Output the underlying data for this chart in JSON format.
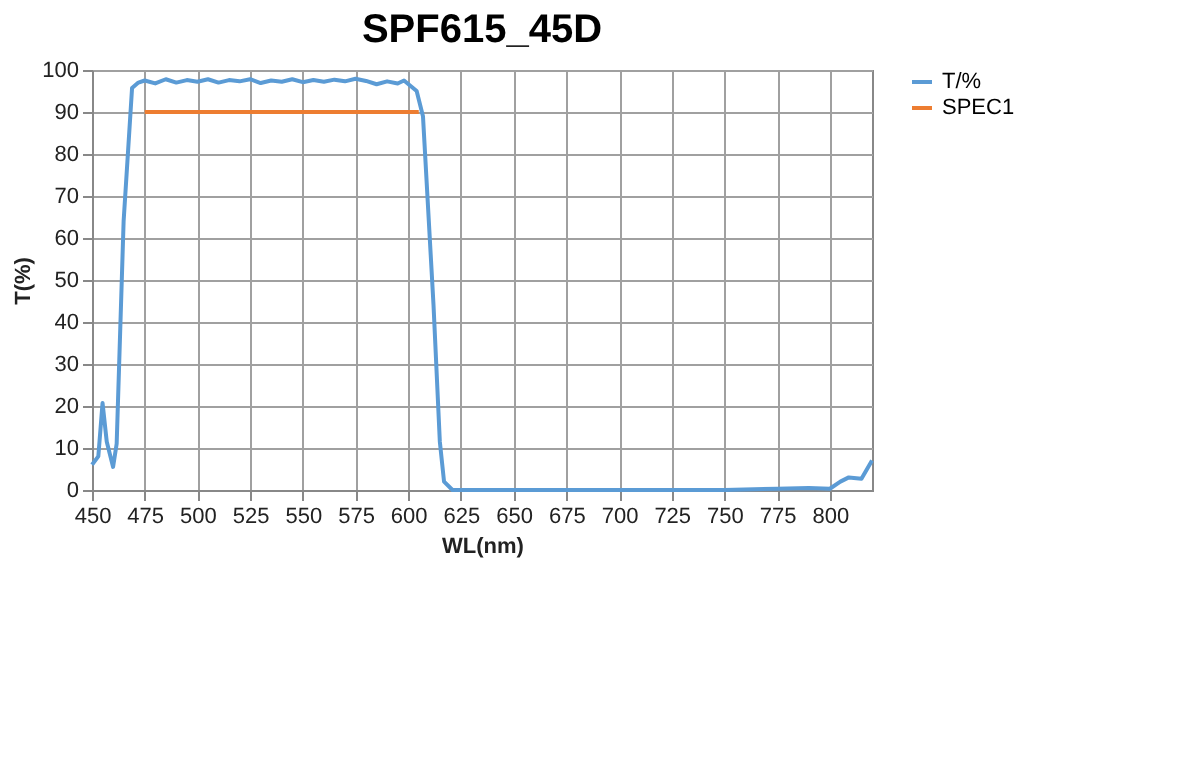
{
  "chart_data": {
    "type": "line",
    "title": "SPF615_45D",
    "xlabel": "WL(nm)",
    "ylabel": "T(%)",
    "xlim": [
      450,
      820
    ],
    "xticks": [
      450,
      475,
      500,
      525,
      550,
      575,
      600,
      625,
      650,
      675,
      700,
      725,
      750,
      775,
      800
    ],
    "ylim": [
      0,
      100
    ],
    "yticks": [
      0,
      10,
      20,
      30,
      40,
      50,
      60,
      70,
      80,
      90,
      100
    ],
    "grid": true,
    "legend": "right",
    "marker": "none",
    "line_style": "solid",
    "series": [
      {
        "name": "T/%",
        "color": "#5b9bd5",
        "x": [
          450,
          453,
          455,
          457,
          460,
          461.7,
          465,
          469,
          472,
          475,
          480,
          485,
          490,
          495,
          500,
          505,
          510,
          515,
          520,
          525,
          530,
          535,
          540,
          545,
          550,
          555,
          560,
          565,
          570,
          575,
          580,
          585,
          590,
          595,
          598,
          604,
          607,
          612,
          615,
          617,
          621,
          650,
          700,
          750,
          775,
          790,
          800,
          805,
          809,
          815,
          820
        ],
        "values": [
          6,
          8,
          20.7,
          11.5,
          5.5,
          11,
          64,
          95.7,
          97,
          97.5,
          96.8,
          97.8,
          97,
          97.6,
          97.2,
          97.8,
          97,
          97.6,
          97.3,
          97.8,
          96.9,
          97.5,
          97.2,
          97.8,
          97.1,
          97.6,
          97.2,
          97.7,
          97.3,
          97.9,
          97.4,
          96.6,
          97.3,
          96.8,
          97.5,
          95,
          89,
          44,
          11.5,
          2,
          0,
          0,
          0,
          0,
          0.3,
          0.5,
          0.3,
          2,
          3,
          2.7,
          7
        ]
      },
      {
        "name": "SPEC1",
        "color": "#ed7d31",
        "x": [
          475,
          605
        ],
        "values": [
          90,
          90
        ]
      }
    ]
  }
}
